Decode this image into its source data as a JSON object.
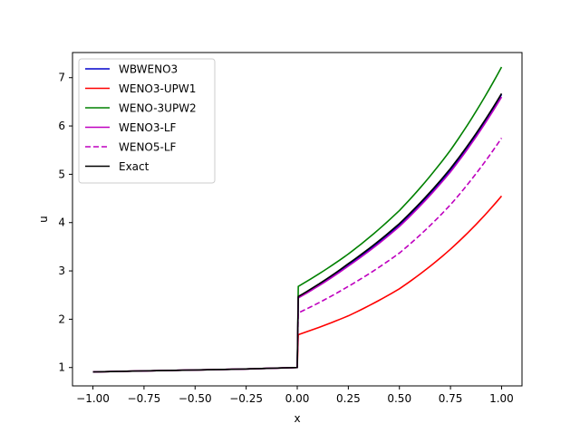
{
  "chart_data": {
    "type": "line",
    "xlabel": "x",
    "ylabel": "u",
    "xlim": [
      -1.1,
      1.1
    ],
    "ylim": [
      0.62,
      7.52
    ],
    "xticks": [
      -1.0,
      -0.75,
      -0.5,
      -0.25,
      0.0,
      0.25,
      0.5,
      0.75,
      1.0
    ],
    "xtick_labels": [
      "−1.00",
      "−0.75",
      "−0.50",
      "−0.25",
      "0.00",
      "0.25",
      "0.50",
      "0.75",
      "1.00"
    ],
    "yticks": [
      1,
      2,
      3,
      4,
      5,
      6,
      7
    ],
    "ytick_labels": [
      "1",
      "2",
      "3",
      "4",
      "5",
      "6",
      "7"
    ],
    "grid": false,
    "legend_position": "top-left",
    "series": [
      {
        "name": "WBWENO3",
        "color": "#0000cc",
        "dash": "solid",
        "x": [
          -1.0,
          -0.75,
          -0.5,
          -0.25,
          0.0,
          0.005,
          0.25,
          0.5,
          0.75,
          1.0
        ],
        "y": [
          0.91,
          0.93,
          0.95,
          0.97,
          1.0,
          2.45,
          3.13,
          3.95,
          5.08,
          6.65
        ]
      },
      {
        "name": "WENO3-UPW1",
        "color": "#ff0000",
        "dash": "solid",
        "x": [
          -1.0,
          -0.75,
          -0.5,
          -0.25,
          0.0,
          0.005,
          0.25,
          0.5,
          0.75,
          1.0
        ],
        "y": [
          0.91,
          0.93,
          0.95,
          0.97,
          1.0,
          1.68,
          2.07,
          2.63,
          3.45,
          4.55
        ]
      },
      {
        "name": "WENO-3UPW2",
        "color": "#008000",
        "dash": "solid",
        "x": [
          -1.0,
          -0.75,
          -0.5,
          -0.25,
          0.0,
          0.005,
          0.25,
          0.5,
          0.75,
          1.0
        ],
        "y": [
          0.91,
          0.93,
          0.95,
          0.97,
          1.0,
          2.68,
          3.35,
          4.25,
          5.5,
          7.22
        ]
      },
      {
        "name": "WENO3-LF",
        "color": "#bf00bf",
        "dash": "solid",
        "x": [
          -1.0,
          -0.75,
          -0.5,
          -0.25,
          0.0,
          0.005,
          0.25,
          0.5,
          0.75,
          1.0
        ],
        "y": [
          0.91,
          0.93,
          0.95,
          0.97,
          1.0,
          2.44,
          3.1,
          3.92,
          5.05,
          6.6
        ]
      },
      {
        "name": "WENO5-LF",
        "color": "#bf00bf",
        "dash": "dashed",
        "x": [
          -1.0,
          -0.75,
          -0.5,
          -0.25,
          0.0,
          0.005,
          0.25,
          0.5,
          0.75,
          1.0
        ],
        "y": [
          0.91,
          0.93,
          0.95,
          0.97,
          1.0,
          2.13,
          2.68,
          3.37,
          4.37,
          5.75
        ]
      },
      {
        "name": "Exact",
        "color": "#000000",
        "dash": "solid",
        "x": [
          -1.0,
          -0.75,
          -0.5,
          -0.25,
          0.0,
          0.005,
          0.25,
          0.5,
          0.75,
          1.0
        ],
        "y": [
          0.91,
          0.93,
          0.95,
          0.97,
          1.0,
          2.47,
          3.15,
          3.98,
          5.12,
          6.67
        ]
      }
    ]
  }
}
